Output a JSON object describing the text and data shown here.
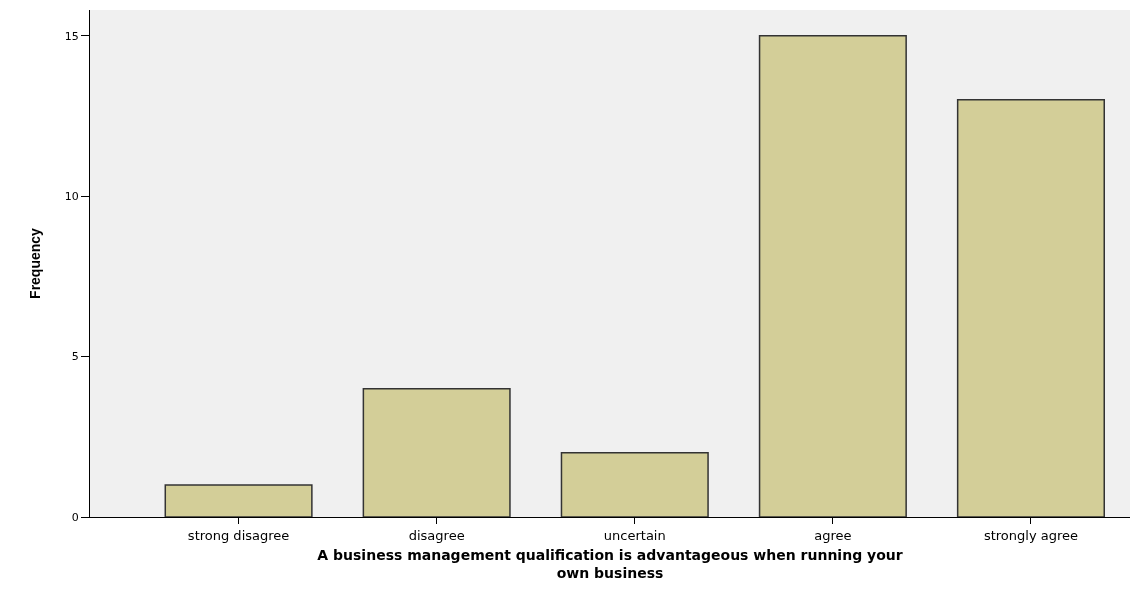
{
  "chart_data": {
    "type": "bar",
    "xlabel": "A business management qualification is advantageous when running your own business",
    "ylabel": "Frequency",
    "categories": [
      "strong disagree",
      "disagree",
      "uncertain",
      "agree",
      "strongly agree"
    ],
    "values": [
      1,
      4,
      2,
      15,
      13
    ],
    "color": "#d3ce98",
    "ylim": [
      0,
      15.8
    ],
    "yticks": [
      0,
      5,
      10,
      15
    ],
    "grid": false
  }
}
